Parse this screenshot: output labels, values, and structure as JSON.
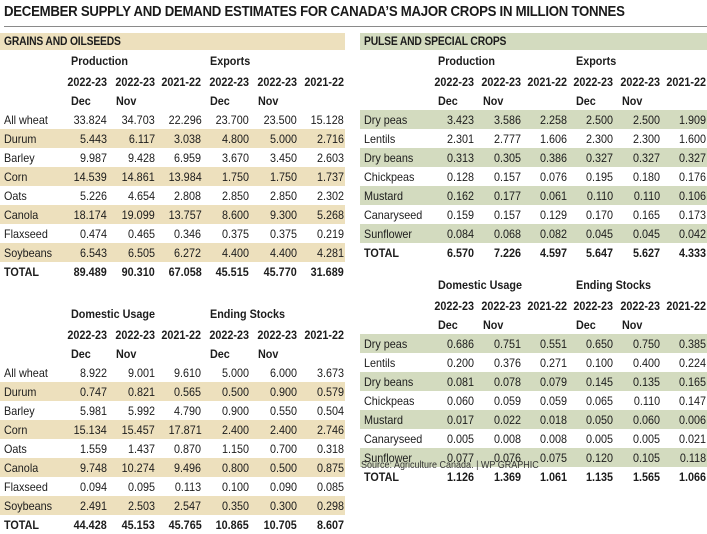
{
  "title": "DECEMBER SUPPLY AND DEMAND ESTIMATES FOR CANADA’S MAJOR CROPS IN MILLION TONNES",
  "colors": {
    "grains_band": "#ede0bd",
    "pulse_band": "#d3dbbf",
    "rule": "#8a8a8a"
  },
  "source": "Source: Agriculture Canada.  |  WP GRAPHIC",
  "panels": {
    "grains": {
      "heading": "GRAINS AND OILSEEDS",
      "tables": [
        {
          "groups": [
            "Production",
            "Exports"
          ],
          "years": [
            "2022-23",
            "2022-23",
            "2021-22",
            "2022-23",
            "2022-23",
            "2021-22"
          ],
          "months": [
            "Dec",
            "Nov",
            "",
            "Dec",
            "Nov",
            ""
          ],
          "rows": [
            {
              "crop": "All wheat",
              "values": [
                "33.824",
                "34.703",
                "22.296",
                "23.700",
                "23.500",
                "15.128"
              ]
            },
            {
              "crop": "Durum",
              "values": [
                "5.443",
                "6.117",
                "3.038",
                "4.800",
                "5.000",
                "2.716"
              ]
            },
            {
              "crop": "Barley",
              "values": [
                "9.987",
                "9.428",
                "6.959",
                "3.670",
                "3.450",
                "2.603"
              ]
            },
            {
              "crop": "Corn",
              "values": [
                "14.539",
                "14.861",
                "13.984",
                "1.750",
                "1.750",
                "1.737"
              ]
            },
            {
              "crop": "Oats",
              "values": [
                "5.226",
                "4.654",
                "2.808",
                "2.850",
                "2.850",
                "2.302"
              ]
            },
            {
              "crop": "Canola",
              "values": [
                "18.174",
                "19.099",
                "13.757",
                "8.600",
                "9.300",
                "5.268"
              ]
            },
            {
              "crop": "Flaxseed",
              "values": [
                "0.474",
                "0.465",
                "0.346",
                "0.375",
                "0.375",
                "0.219"
              ]
            },
            {
              "crop": "Soybeans",
              "values": [
                "6.543",
                "6.505",
                "6.272",
                "4.400",
                "4.400",
                "4.281"
              ]
            }
          ],
          "total": {
            "crop": "TOTAL",
            "values": [
              "89.489",
              "90.310",
              "67.058",
              "45.515",
              "45.770",
              "31.689"
            ]
          }
        },
        {
          "groups": [
            "Domestic Usage",
            "Ending Stocks"
          ],
          "years": [
            "2022-23",
            "2022-23",
            "2021-22",
            "2022-23",
            "2022-23",
            "2021-22"
          ],
          "months": [
            "Dec",
            "Nov",
            "",
            "Dec",
            "Nov",
            ""
          ],
          "rows": [
            {
              "crop": "All wheat",
              "values": [
                "8.922",
                "9.001",
                "9.610",
                "5.000",
                "6.000",
                "3.673"
              ]
            },
            {
              "crop": "Durum",
              "values": [
                "0.747",
                "0.821",
                "0.565",
                "0.500",
                "0.900",
                "0.579"
              ]
            },
            {
              "crop": "Barley",
              "values": [
                "5.981",
                "5.992",
                "4.790",
                "0.900",
                "0.550",
                "0.504"
              ]
            },
            {
              "crop": "Corn",
              "values": [
                "15.134",
                "15.457",
                "17.871",
                "2.400",
                "2.400",
                "2.746"
              ]
            },
            {
              "crop": "Oats",
              "values": [
                "1.559",
                "1.437",
                "0.870",
                "1.150",
                "0.700",
                "0.318"
              ]
            },
            {
              "crop": "Canola",
              "values": [
                "9.748",
                "10.274",
                "9.496",
                "0.800",
                "0.500",
                "0.875"
              ]
            },
            {
              "crop": "Flaxseed",
              "values": [
                "0.094",
                "0.095",
                "0.113",
                "0.100",
                "0.090",
                "0.085"
              ]
            },
            {
              "crop": "Soybeans",
              "values": [
                "2.491",
                "2.503",
                "2.547",
                "0.350",
                "0.300",
                "0.298"
              ]
            }
          ],
          "total": {
            "crop": "TOTAL",
            "values": [
              "44.428",
              "45.153",
              "45.765",
              "10.865",
              "10.705",
              "8.607"
            ]
          }
        }
      ]
    },
    "pulse": {
      "heading": "PULSE AND SPECIAL CROPS",
      "tables": [
        {
          "groups": [
            "Production",
            "Exports"
          ],
          "years": [
            "2022-23",
            "2022-23",
            "2021-22",
            "2022-23",
            "2022-23",
            "2021-22"
          ],
          "months": [
            "Dec",
            "Nov",
            "",
            "Dec",
            "Nov",
            ""
          ],
          "rows": [
            {
              "crop": "Dry peas",
              "values": [
                "3.423",
                "3.586",
                "2.258",
                "2.500",
                "2.500",
                "1.909"
              ]
            },
            {
              "crop": "Lentils",
              "values": [
                "2.301",
                "2.777",
                "1.606",
                "2.300",
                "2.300",
                "1.600"
              ]
            },
            {
              "crop": "Dry beans",
              "values": [
                "0.313",
                "0.305",
                "0.386",
                "0.327",
                "0.327",
                "0.327"
              ]
            },
            {
              "crop": "Chickpeas",
              "values": [
                "0.128",
                "0.157",
                "0.076",
                "0.195",
                "0.180",
                "0.176"
              ]
            },
            {
              "crop": "Mustard",
              "values": [
                "0.162",
                "0.177",
                "0.061",
                "0.110",
                "0.110",
                "0.106"
              ]
            },
            {
              "crop": "Canaryseed",
              "values": [
                "0.159",
                "0.157",
                "0.129",
                "0.170",
                "0.165",
                "0.173"
              ]
            },
            {
              "crop": "Sunflower",
              "values": [
                "0.084",
                "0.068",
                "0.082",
                "0.045",
                "0.045",
                "0.042"
              ]
            }
          ],
          "total": {
            "crop": "TOTAL",
            "values": [
              "6.570",
              "7.226",
              "4.597",
              "5.647",
              "5.627",
              "4.333"
            ]
          }
        },
        {
          "groups": [
            "Domestic Usage",
            "Ending Stocks"
          ],
          "years": [
            "2022-23",
            "2022-23",
            "2021-22",
            "2022-23",
            "2022-23",
            "2021-22"
          ],
          "months": [
            "Dec",
            "Nov",
            "",
            "Dec",
            "Nov",
            ""
          ],
          "rows": [
            {
              "crop": "Dry peas",
              "values": [
                "0.686",
                "0.751",
                "0.551",
                "0.650",
                "0.750",
                "0.385"
              ]
            },
            {
              "crop": "Lentils",
              "values": [
                "0.200",
                "0.376",
                "0.271",
                "0.100",
                "0.400",
                "0.224"
              ]
            },
            {
              "crop": "Dry beans",
              "values": [
                "0.081",
                "0.078",
                "0.079",
                "0.145",
                "0.135",
                "0.165"
              ]
            },
            {
              "crop": "Chickpeas",
              "values": [
                "0.060",
                "0.059",
                "0.059",
                "0.065",
                "0.110",
                "0.147"
              ]
            },
            {
              "crop": "Mustard",
              "values": [
                "0.017",
                "0.022",
                "0.018",
                "0.050",
                "0.060",
                "0.006"
              ]
            },
            {
              "crop": "Canaryseed",
              "values": [
                "0.005",
                "0.008",
                "0.008",
                "0.005",
                "0.005",
                "0.021"
              ]
            },
            {
              "crop": "Sunflower",
              "values": [
                "0.077",
                "0.076",
                "0.075",
                "0.120",
                "0.105",
                "0.118"
              ]
            }
          ],
          "total": {
            "crop": "TOTAL",
            "values": [
              "1.126",
              "1.369",
              "1.061",
              "1.135",
              "1.565",
              "1.066"
            ]
          }
        }
      ]
    }
  }
}
